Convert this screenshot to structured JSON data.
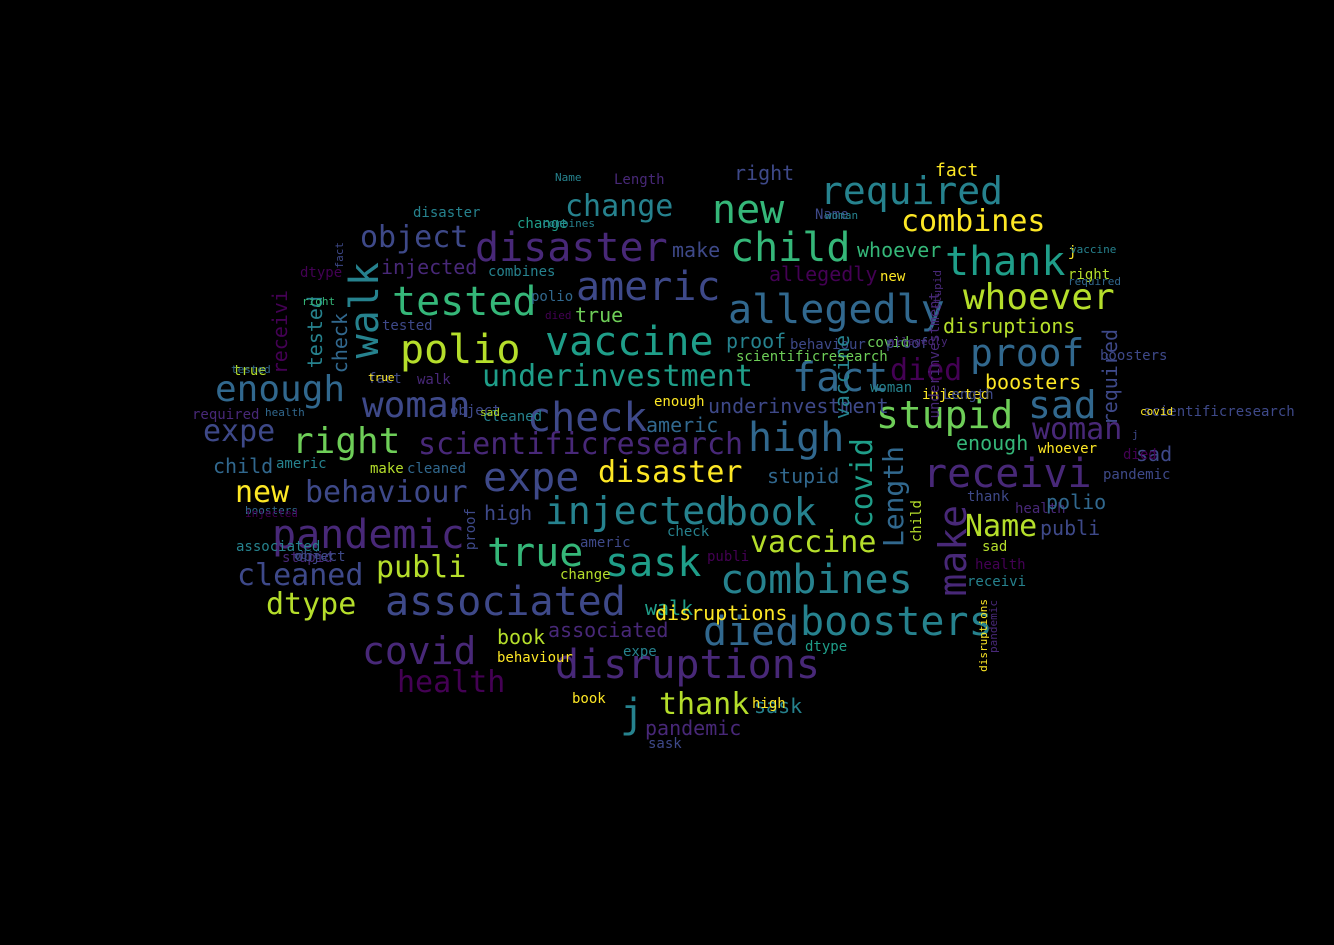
{
  "background": "#000000",
  "palette": {
    "dark_purple": "#440154",
    "purple": "#482878",
    "indigo": "#3e4989",
    "blue": "#31688e",
    "teal_blue": "#26828e",
    "teal": "#1f9e89",
    "green_teal": "#35b779",
    "green": "#6ece58",
    "lime": "#b5de2b",
    "yellow": "#fde725"
  },
  "words": [
    {
      "text": "allegedly",
      "color": "#31688e"
    },
    {
      "text": "disruptions",
      "color": "#482878"
    },
    {
      "text": "vaccine",
      "color": "#1f9e89"
    },
    {
      "text": "combines",
      "color": "#26828e"
    },
    {
      "text": "required",
      "color": "#26828e"
    },
    {
      "text": "scientificresearch",
      "color": "#482878"
    },
    {
      "text": "associated",
      "color": "#3e4989"
    },
    {
      "text": "disaster",
      "color": "#482878"
    },
    {
      "text": "receivi",
      "color": "#482878"
    },
    {
      "text": "underinvestment",
      "color": "#1f9e89"
    },
    {
      "text": "behaviour",
      "color": "#3e4989"
    },
    {
      "text": "pandemic",
      "color": "#482878"
    },
    {
      "text": "boosters",
      "color": "#26828e"
    },
    {
      "text": "whoever",
      "color": "#b5de2b"
    },
    {
      "text": "child",
      "color": "#35b779"
    },
    {
      "text": "new",
      "color": "#35b779"
    },
    {
      "text": "thank",
      "color": "#1f9e89"
    },
    {
      "text": "americ",
      "color": "#3e4989"
    },
    {
      "text": "tested",
      "color": "#35b779"
    },
    {
      "text": "polio",
      "color": "#b5de2b"
    },
    {
      "text": "fact",
      "color": "#31688e"
    },
    {
      "text": "check",
      "color": "#3e4989"
    },
    {
      "text": "woman",
      "color": "#3e4989"
    },
    {
      "text": "enough",
      "color": "#31688e"
    },
    {
      "text": "right",
      "color": "#6ece58"
    },
    {
      "text": "high",
      "color": "#31688e"
    },
    {
      "text": "stupid",
      "color": "#6ece58"
    },
    {
      "text": "proof",
      "color": "#31688e"
    },
    {
      "text": "sad",
      "color": "#31688e"
    },
    {
      "text": "expe",
      "color": "#3e4989"
    },
    {
      "text": "injected",
      "color": "#26828e"
    },
    {
      "text": "book",
      "color": "#26828e"
    },
    {
      "text": "true",
      "color": "#35b779"
    },
    {
      "text": "sask",
      "color": "#1f9e89"
    },
    {
      "text": "covid",
      "color": "#482878"
    },
    {
      "text": "died",
      "color": "#31688e"
    },
    {
      "text": "health",
      "color": "#440154"
    },
    {
      "text": "j",
      "color": "#26828e"
    },
    {
      "text": "thank",
      "color": "#b5de2b"
    },
    {
      "text": "walk",
      "color": "#26828e"
    },
    {
      "text": "object",
      "color": "#3e4989"
    },
    {
      "text": "change",
      "color": "#26828e"
    },
    {
      "text": "make",
      "color": "#3e4989"
    },
    {
      "text": "Length",
      "color": "#31688e"
    },
    {
      "text": "Name",
      "color": "#b5de2b"
    },
    {
      "text": "covid",
      "color": "#1f9e89"
    },
    {
      "text": "dtype",
      "color": "#b5de2b"
    },
    {
      "text": "publi",
      "color": "#b5de2b"
    },
    {
      "text": "cleaned",
      "color": "#3e4989"
    },
    {
      "text": "disaster",
      "color": "#fde725"
    },
    {
      "text": "vaccine",
      "color": "#b5de2b"
    },
    {
      "text": "stupid",
      "color": "#31688e"
    },
    {
      "text": "died",
      "color": "#440154"
    },
    {
      "text": "combines",
      "color": "#fde725"
    },
    {
      "text": "disruptions",
      "color": "#b5de2b"
    },
    {
      "text": "boosters",
      "color": "#fde725"
    },
    {
      "text": "woman",
      "color": "#482878"
    },
    {
      "text": "receivi",
      "color": "#440154"
    },
    {
      "text": "walk",
      "color": "#1f9e89"
    },
    {
      "text": "new",
      "color": "#fde725"
    },
    {
      "text": "underinvestment",
      "color": "#3e4989"
    },
    {
      "text": "associated",
      "color": "#482878"
    },
    {
      "text": "pandemic",
      "color": "#482878"
    },
    {
      "text": "fact",
      "color": "#fde725"
    },
    {
      "text": "right",
      "color": "#3e4989"
    },
    {
      "text": "make",
      "color": "#482878"
    },
    {
      "text": "allegedly",
      "color": "#440154"
    },
    {
      "text": "enough",
      "color": "#35b779"
    },
    {
      "text": "americ",
      "color": "#31688e"
    },
    {
      "text": "high",
      "color": "#3e4989"
    },
    {
      "text": "expe",
      "color": "#3e4989"
    },
    {
      "text": "child",
      "color": "#31688e"
    },
    {
      "text": "injected",
      "color": "#482878"
    },
    {
      "text": "proof",
      "color": "#26828e"
    },
    {
      "text": "tested",
      "color": "#26828e"
    },
    {
      "text": "check",
      "color": "#31688e"
    },
    {
      "text": "sad",
      "color": "#3e4989"
    },
    {
      "text": "book",
      "color": "#b5de2b"
    },
    {
      "text": "sask",
      "color": "#26828e"
    },
    {
      "text": "true",
      "color": "#6ece58"
    },
    {
      "text": "whoever",
      "color": "#35b779"
    },
    {
      "text": "dtype",
      "color": "#440154"
    },
    {
      "text": "polio",
      "color": "#31688e"
    },
    {
      "text": "required",
      "color": "#3e4989"
    },
    {
      "text": "Length",
      "color": "#482878"
    },
    {
      "text": "publi",
      "color": "#3e4989"
    },
    {
      "text": "combines",
      "color": "#26828e"
    },
    {
      "text": "covid",
      "color": "#6ece58"
    },
    {
      "text": "disruptions",
      "color": "#fde725"
    },
    {
      "text": "object",
      "color": "#3e4989"
    },
    {
      "text": "health",
      "color": "#482878"
    },
    {
      "text": "behaviour",
      "color": "#3e4989"
    },
    {
      "text": "Name",
      "color": "#3e4989"
    },
    {
      "text": "new",
      "color": "#fde725"
    },
    {
      "text": "right",
      "color": "#b5de2b"
    },
    {
      "text": "vaccine",
      "color": "#26828e"
    },
    {
      "text": "j",
      "color": "#fde725"
    },
    {
      "text": "fact",
      "color": "#3e4989"
    },
    {
      "text": "woman",
      "color": "#26828e"
    },
    {
      "text": "enough",
      "color": "#fde725"
    },
    {
      "text": "scientificresearch",
      "color": "#3e4989"
    },
    {
      "text": "americ",
      "color": "#26828e"
    },
    {
      "text": "injected",
      "color": "#fde725"
    },
    {
      "text": "make",
      "color": "#b5de2b"
    },
    {
      "text": "cleaned",
      "color": "#31688e"
    },
    {
      "text": "receivi",
      "color": "#26828e"
    },
    {
      "text": "polio",
      "color": "#31688e"
    },
    {
      "text": "health",
      "color": "#440154"
    },
    {
      "text": "underinvestment",
      "color": "#482878"
    },
    {
      "text": "child",
      "color": "#b5de2b"
    },
    {
      "text": "pandemic",
      "color": "#3e4989"
    },
    {
      "text": "thank",
      "color": "#3e4989"
    },
    {
      "text": "sad",
      "color": "#b5de2b"
    },
    {
      "text": "died",
      "color": "#440154"
    },
    {
      "text": "true",
      "color": "#b5de2b"
    },
    {
      "text": "stupid",
      "color": "#482878"
    },
    {
      "text": "disaster",
      "color": "#26828e"
    },
    {
      "text": "proof",
      "color": "#3e4989"
    },
    {
      "text": "cleaned",
      "color": "#26828e"
    },
    {
      "text": "tested",
      "color": "#3e4989"
    },
    {
      "text": "scientificresearch",
      "color": "#6ece58"
    },
    {
      "text": "required",
      "color": "#482878"
    },
    {
      "text": "boosters",
      "color": "#3e4989"
    },
    {
      "text": "object",
      "color": "#3e4989"
    },
    {
      "text": "walk",
      "color": "#482878"
    },
    {
      "text": "check",
      "color": "#26828e"
    },
    {
      "text": "publi",
      "color": "#440154"
    },
    {
      "text": "change",
      "color": "#b5de2b"
    },
    {
      "text": "change",
      "color": "#1f9e89"
    },
    {
      "text": "behaviour",
      "color": "#fde725"
    },
    {
      "text": "expe",
      "color": "#26828e"
    },
    {
      "text": "dtype",
      "color": "#1f9e89"
    },
    {
      "text": "whoever",
      "color": "#fde725"
    },
    {
      "text": "sask",
      "color": "#3e4989"
    },
    {
      "text": "high",
      "color": "#fde725"
    },
    {
      "text": "book",
      "color": "#fde725"
    },
    {
      "text": "associated",
      "color": "#26828e"
    },
    {
      "text": "americ",
      "color": "#3e4989"
    },
    {
      "text": "Length",
      "color": "#3e4989"
    },
    {
      "text": "Name",
      "color": "#26828e"
    },
    {
      "text": "j",
      "color": "#3e4989"
    },
    {
      "text": "covid",
      "color": "#fde725"
    },
    {
      "text": "proof",
      "color": "#3e4989"
    },
    {
      "text": "sad",
      "color": "#b5de2b"
    },
    {
      "text": "fact",
      "color": "#3e4989"
    },
    {
      "text": "vaccine",
      "color": "#26828e"
    },
    {
      "text": "woman",
      "color": "#26828e"
    },
    {
      "text": "true",
      "color": "#fde725"
    },
    {
      "text": "tested",
      "color": "#31688e"
    },
    {
      "text": "right",
      "color": "#35b779"
    },
    {
      "text": "health",
      "color": "#31688e"
    },
    {
      "text": "stupid",
      "color": "#482878"
    },
    {
      "text": "died",
      "color": "#440154"
    },
    {
      "text": "disruptions",
      "color": "#fde725"
    },
    {
      "text": "combines",
      "color": "#26828e"
    },
    {
      "text": "allegedly",
      "color": "#482878"
    },
    {
      "text": "required",
      "color": "#31688e"
    },
    {
      "text": "boosters",
      "color": "#31688e"
    },
    {
      "text": "object",
      "color": "#3e4989"
    },
    {
      "text": "pandemic",
      "color": "#482878"
    },
    {
      "text": "injected",
      "color": "#440154"
    }
  ]
}
